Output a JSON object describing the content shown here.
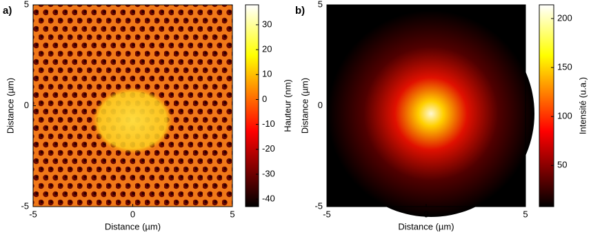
{
  "chart_data": [
    {
      "type": "heatmap",
      "panel_label": "a)",
      "colormap": "hot",
      "xlabel": "Distance (µm)",
      "ylabel": "Distance (µm)",
      "xlim": [
        -5,
        5
      ],
      "ylim": [
        -5,
        5
      ],
      "xticks": [
        -5,
        0,
        5
      ],
      "yticks": [
        -5,
        0,
        5
      ],
      "colorbar": {
        "label": "Hauteur (nm)",
        "clim": [
          -43,
          38
        ],
        "ticks": [
          -40,
          -30,
          -20,
          -10,
          0,
          10,
          20,
          30
        ]
      }
    },
    {
      "type": "heatmap",
      "panel_label": "b)",
      "colormap": "hot",
      "xlabel": "Distance (µm)",
      "ylabel": "Distance (µm)",
      "xlim": [
        -5,
        5
      ],
      "ylim": [
        -5,
        5
      ],
      "xticks": [
        -5,
        0,
        5
      ],
      "yticks": [
        -5,
        0,
        5
      ],
      "colorbar": {
        "label": "Intensité  (u.a.)",
        "clim": [
          8,
          214
        ],
        "ticks": [
          50,
          100,
          150,
          200
        ]
      }
    }
  ]
}
